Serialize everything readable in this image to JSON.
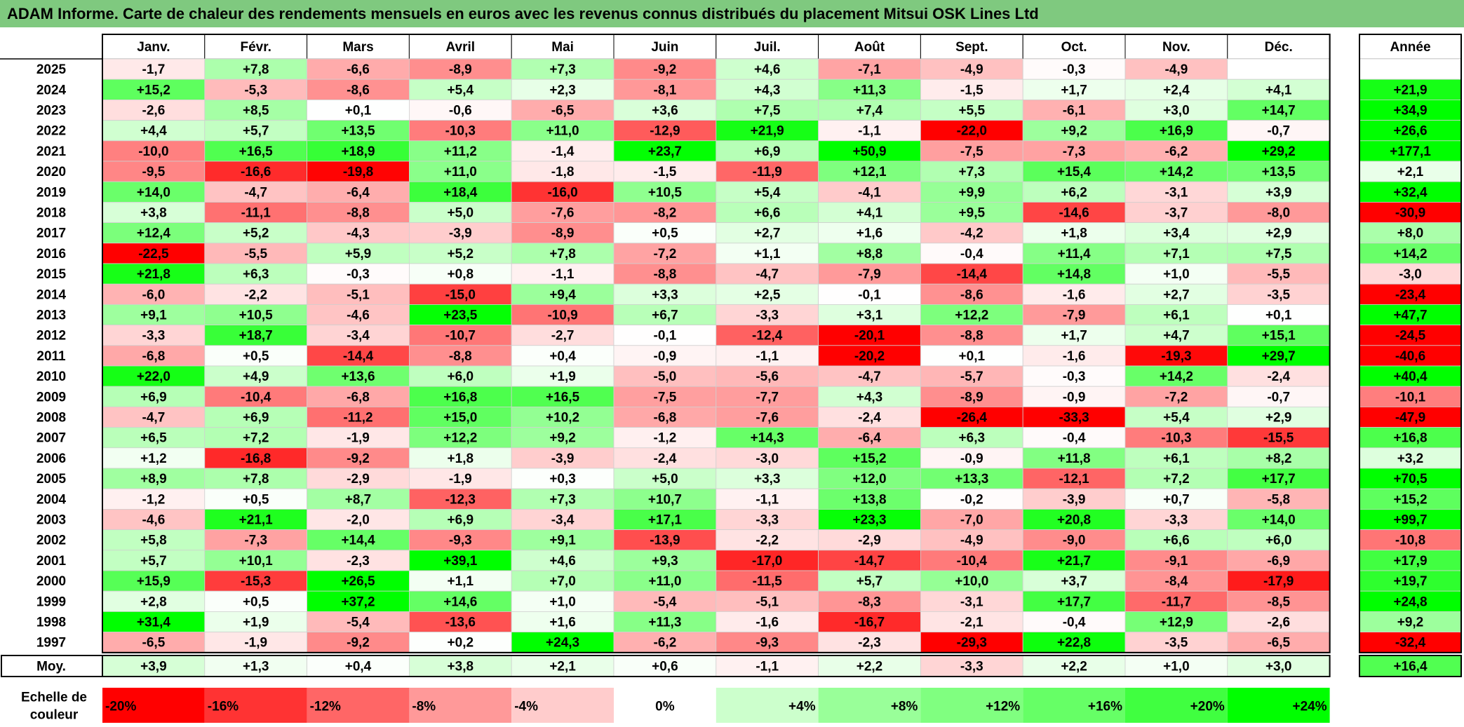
{
  "chart_data": {
    "type": "heatmap",
    "title": "ADAM Informe. Carte de chaleur des rendements mensuels en euros avec les revenus connus distribués du placement Mitsui OSK Lines Ltd",
    "columns": [
      "Janv.",
      "Févr.",
      "Mars",
      "Avril",
      "Mai",
      "Juin",
      "Juil.",
      "Août",
      "Sept.",
      "Oct.",
      "Nov.",
      "Déc."
    ],
    "year_header": "Année",
    "rows": [
      {
        "year": "2025",
        "values": [
          "-1,7",
          "+7,8",
          "-6,6",
          "-8,9",
          "+7,3",
          "-9,2",
          "+4,6",
          "-7,1",
          "-4,9",
          "-0,3",
          "-4,9",
          ""
        ],
        "annual": ""
      },
      {
        "year": "2024",
        "values": [
          "+15,2",
          "-5,3",
          "-8,6",
          "+5,4",
          "+2,3",
          "-8,1",
          "+4,3",
          "+11,3",
          "-1,5",
          "+1,7",
          "+2,4",
          "+4,1"
        ],
        "annual": "+21,9"
      },
      {
        "year": "2023",
        "values": [
          "-2,6",
          "+8,5",
          "+0,1",
          "-0,6",
          "-6,5",
          "+3,6",
          "+7,5",
          "+7,4",
          "+5,5",
          "-6,1",
          "+3,0",
          "+14,7"
        ],
        "annual": "+34,9"
      },
      {
        "year": "2022",
        "values": [
          "+4,4",
          "+5,7",
          "+13,5",
          "-10,3",
          "+11,0",
          "-12,9",
          "+21,9",
          "-1,1",
          "-22,0",
          "+9,2",
          "+16,9",
          "-0,7"
        ],
        "annual": "+26,6"
      },
      {
        "year": "2021",
        "values": [
          "-10,0",
          "+16,5",
          "+18,9",
          "+11,2",
          "-1,4",
          "+23,7",
          "+6,9",
          "+50,9",
          "-7,5",
          "-7,3",
          "-6,2",
          "+29,2"
        ],
        "annual": "+177,1"
      },
      {
        "year": "2020",
        "values": [
          "-9,5",
          "-16,6",
          "-19,8",
          "+11,0",
          "-1,8",
          "-1,5",
          "-11,9",
          "+12,1",
          "+7,3",
          "+15,4",
          "+14,2",
          "+13,5"
        ],
        "annual": "+2,1"
      },
      {
        "year": "2019",
        "values": [
          "+14,0",
          "-4,7",
          "-6,4",
          "+18,4",
          "-16,0",
          "+10,5",
          "+5,4",
          "-4,1",
          "+9,9",
          "+6,2",
          "-3,1",
          "+3,9"
        ],
        "annual": "+32,4"
      },
      {
        "year": "2018",
        "values": [
          "+3,8",
          "-11,1",
          "-8,8",
          "+5,0",
          "-7,6",
          "-8,2",
          "+6,6",
          "+4,1",
          "+9,5",
          "-14,6",
          "-3,7",
          "-8,0"
        ],
        "annual": "-30,9"
      },
      {
        "year": "2017",
        "values": [
          "+12,4",
          "+5,2",
          "-4,3",
          "-3,9",
          "-8,9",
          "+0,5",
          "+2,7",
          "+1,6",
          "-4,2",
          "+1,8",
          "+3,4",
          "+2,9"
        ],
        "annual": "+8,0"
      },
      {
        "year": "2016",
        "values": [
          "-22,5",
          "-5,5",
          "+5,9",
          "+5,2",
          "+7,8",
          "-7,2",
          "+1,1",
          "+8,8",
          "-0,4",
          "+11,4",
          "+7,1",
          "+7,5"
        ],
        "annual": "+14,2"
      },
      {
        "year": "2015",
        "values": [
          "+21,8",
          "+6,3",
          "-0,3",
          "+0,8",
          "-1,1",
          "-8,8",
          "-4,7",
          "-7,9",
          "-14,4",
          "+14,8",
          "+1,0",
          "-5,5"
        ],
        "annual": "-3,0"
      },
      {
        "year": "2014",
        "values": [
          "-6,0",
          "-2,2",
          "-5,1",
          "-15,0",
          "+9,4",
          "+3,3",
          "+2,5",
          "-0,1",
          "-8,6",
          "-1,6",
          "+2,7",
          "-3,5"
        ],
        "annual": "-23,4"
      },
      {
        "year": "2013",
        "values": [
          "+9,1",
          "+10,5",
          "-4,6",
          "+23,5",
          "-10,9",
          "+6,7",
          "-3,3",
          "+3,1",
          "+12,2",
          "-7,9",
          "+6,1",
          "+0,1"
        ],
        "annual": "+47,7"
      },
      {
        "year": "2012",
        "values": [
          "-3,3",
          "+18,7",
          "-3,4",
          "-10,7",
          "-2,7",
          "-0,1",
          "-12,4",
          "-20,1",
          "-8,8",
          "+1,7",
          "+4,7",
          "+15,1"
        ],
        "annual": "-24,5"
      },
      {
        "year": "2011",
        "values": [
          "-6,8",
          "+0,5",
          "-14,4",
          "-8,8",
          "+0,4",
          "-0,9",
          "-1,1",
          "-20,2",
          "+0,1",
          "-1,6",
          "-19,3",
          "+29,7"
        ],
        "annual": "-40,6"
      },
      {
        "year": "2010",
        "values": [
          "+22,0",
          "+4,9",
          "+13,6",
          "+6,0",
          "+1,9",
          "-5,0",
          "-5,6",
          "-4,7",
          "-5,7",
          "-0,3",
          "+14,2",
          "-2,4"
        ],
        "annual": "+40,4"
      },
      {
        "year": "2009",
        "values": [
          "+6,9",
          "-10,4",
          "-6,8",
          "+16,8",
          "+16,5",
          "-7,5",
          "-7,7",
          "+4,3",
          "-8,9",
          "-0,9",
          "-7,2",
          "-0,7"
        ],
        "annual": "-10,1"
      },
      {
        "year": "2008",
        "values": [
          "-4,7",
          "+6,9",
          "-11,2",
          "+15,0",
          "+10,2",
          "-6,8",
          "-7,6",
          "-2,4",
          "-26,4",
          "-33,3",
          "+5,4",
          "+2,9"
        ],
        "annual": "-47,9"
      },
      {
        "year": "2007",
        "values": [
          "+6,5",
          "+7,2",
          "-1,9",
          "+12,2",
          "+9,2",
          "-1,2",
          "+14,3",
          "-6,4",
          "+6,3",
          "-0,4",
          "-10,3",
          "-15,5"
        ],
        "annual": "+16,8"
      },
      {
        "year": "2006",
        "values": [
          "+1,2",
          "-16,8",
          "-9,2",
          "+1,8",
          "-3,9",
          "-2,4",
          "-3,0",
          "+15,2",
          "-0,9",
          "+11,8",
          "+6,1",
          "+8,2"
        ],
        "annual": "+3,2"
      },
      {
        "year": "2005",
        "values": [
          "+8,9",
          "+7,8",
          "-2,9",
          "-1,9",
          "+0,3",
          "+5,0",
          "+3,3",
          "+12,0",
          "+13,3",
          "-12,1",
          "+7,2",
          "+17,7"
        ],
        "annual": "+70,5"
      },
      {
        "year": "2004",
        "values": [
          "-1,2",
          "+0,5",
          "+8,7",
          "-12,3",
          "+7,3",
          "+10,7",
          "-1,1",
          "+13,8",
          "-0,2",
          "-3,9",
          "+0,7",
          "-5,8"
        ],
        "annual": "+15,2"
      },
      {
        "year": "2003",
        "values": [
          "-4,6",
          "+21,1",
          "-2,0",
          "+6,9",
          "-3,4",
          "+17,1",
          "-3,3",
          "+23,3",
          "-7,0",
          "+20,8",
          "-3,3",
          "+14,0"
        ],
        "annual": "+99,7"
      },
      {
        "year": "2002",
        "values": [
          "+5,8",
          "-7,3",
          "+14,4",
          "-9,3",
          "+9,1",
          "-13,9",
          "-2,2",
          "-2,9",
          "-4,9",
          "-9,0",
          "+6,6",
          "+6,0"
        ],
        "annual": "-10,8"
      },
      {
        "year": "2001",
        "values": [
          "+5,7",
          "+10,1",
          "-2,3",
          "+39,1",
          "+4,6",
          "+9,3",
          "-17,0",
          "-14,7",
          "-10,4",
          "+21,7",
          "-9,1",
          "-6,9"
        ],
        "annual": "+17,9"
      },
      {
        "year": "2000",
        "values": [
          "+15,9",
          "-15,3",
          "+26,5",
          "+1,1",
          "+7,0",
          "+11,0",
          "-11,5",
          "+5,7",
          "+10,0",
          "+3,7",
          "-8,4",
          "-17,9"
        ],
        "annual": "+19,7"
      },
      {
        "year": "1999",
        "values": [
          "+2,8",
          "+0,5",
          "+37,2",
          "+14,6",
          "+1,0",
          "-5,4",
          "-5,1",
          "-8,3",
          "-3,1",
          "+17,7",
          "-11,7",
          "-8,5"
        ],
        "annual": "+24,8"
      },
      {
        "year": "1998",
        "values": [
          "+31,4",
          "+1,9",
          "-5,4",
          "-13,6",
          "+1,6",
          "+11,3",
          "-1,6",
          "-16,7",
          "-2,1",
          "-0,4",
          "+12,9",
          "-2,6"
        ],
        "annual": "+9,2"
      },
      {
        "year": "1997",
        "values": [
          "-6,5",
          "-1,9",
          "-9,2",
          "+0,2",
          "+24,3",
          "-6,2",
          "-9,3",
          "-2,3",
          "-29,3",
          "+22,8",
          "-3,5",
          "-6,5"
        ],
        "annual": "-32,4"
      }
    ],
    "average": {
      "label": "Moy.",
      "values": [
        "+3,9",
        "+1,3",
        "+0,4",
        "+3,8",
        "+2,1",
        "+0,6",
        "-1,1",
        "+2,2",
        "-3,3",
        "+2,2",
        "+1,0",
        "+3,0"
      ],
      "annual": "+16,4"
    },
    "scale": {
      "label_line1": "Echelle de",
      "label_line2": "couleur",
      "stops": [
        {
          "label": "-20%",
          "color": "#ff0000"
        },
        {
          "label": "-16%",
          "color": "#ff3333"
        },
        {
          "label": "-12%",
          "color": "#ff6666"
        },
        {
          "label": "-8%",
          "color": "#ff9999"
        },
        {
          "label": "-4%",
          "color": "#ffcccc"
        },
        {
          "label": "0%",
          "color": "#ffffff"
        },
        {
          "label": "+4%",
          "color": "#ccffcc"
        },
        {
          "label": "+8%",
          "color": "#99ff99"
        },
        {
          "label": "+12%",
          "color": "#80ff80"
        },
        {
          "label": "+16%",
          "color": "#66ff66"
        },
        {
          "label": "+20%",
          "color": "#40ff40"
        },
        {
          "label": "+24%",
          "color": "#00ff00"
        }
      ]
    },
    "colors": {
      "title_bar": "#7fc97f",
      "negative_max": "#ff0000",
      "positive_max": "#00ff00",
      "neutral": "#ffffff"
    }
  }
}
